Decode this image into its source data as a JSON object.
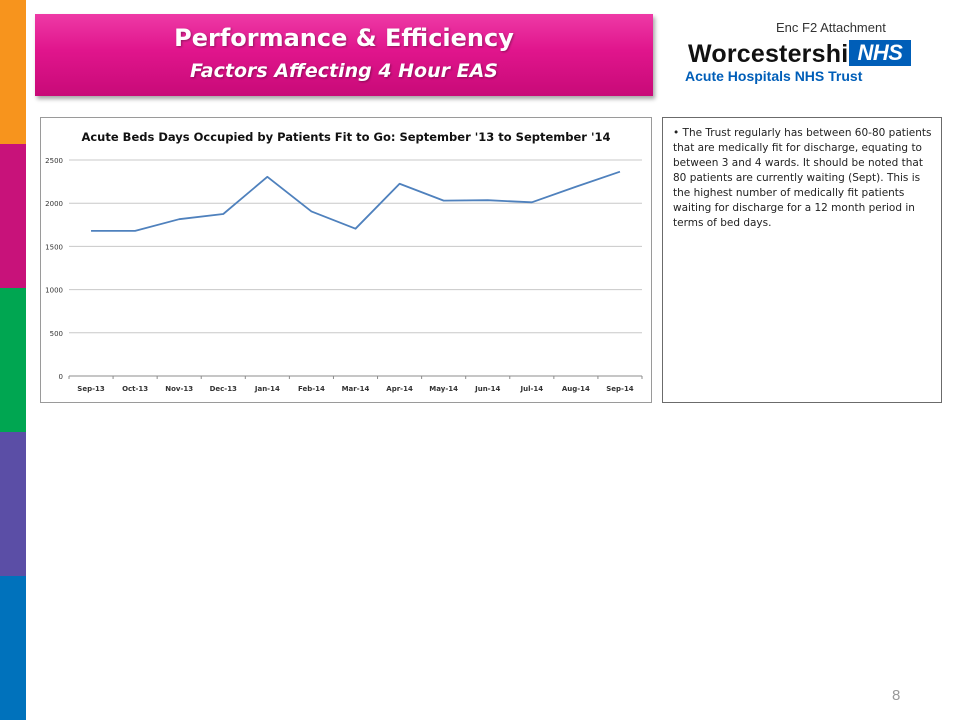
{
  "header": {
    "title": "Performance & Efficiency",
    "subtitle": "Factors Affecting 4 Hour EAS",
    "enc_label": "Enc F2 Attachment",
    "logo": {
      "org_name": "Worcestershire",
      "nhs_mark": "NHS",
      "trust_name": "Acute Hospitals NHS Trust"
    }
  },
  "side_strip_colors": [
    "#f7941d",
    "#c8127a",
    "#00a651",
    "#5b4ea6",
    "#0072bc"
  ],
  "chart_data": {
    "type": "line",
    "title": "Acute Beds Days Occupied by Patients Fit to Go: September '13 to September '14",
    "xlabel": "",
    "ylabel": "",
    "categories": [
      "Sep-13",
      "Oct-13",
      "Nov-13",
      "Dec-13",
      "Jan-14",
      "Feb-14",
      "Mar-14",
      "Apr-14",
      "May-14",
      "Jun-14",
      "Jul-14",
      "Aug-14",
      "Sep-14"
    ],
    "series": [
      {
        "values": [
          1680,
          1680,
          1815,
          1875,
          2305,
          1905,
          1705,
          2225,
          2030,
          2035,
          2010,
          2190,
          2365
        ]
      }
    ],
    "ylim": [
      0,
      2500
    ],
    "yticks": [
      0,
      500,
      1000,
      1500,
      2000,
      2500
    ],
    "grid": true,
    "legend": "none",
    "line_color": "#4f81bd"
  },
  "notes": {
    "text": "The Trust regularly has between 60-80 patients that are medically fit for discharge, equating to between 3 and 4 wards. It should be noted that 80 patients are currently waiting (Sept). This is the highest number of medically fit patients waiting for discharge for a 12 month period in terms of bed days."
  },
  "footer": {
    "page_number": "8"
  }
}
